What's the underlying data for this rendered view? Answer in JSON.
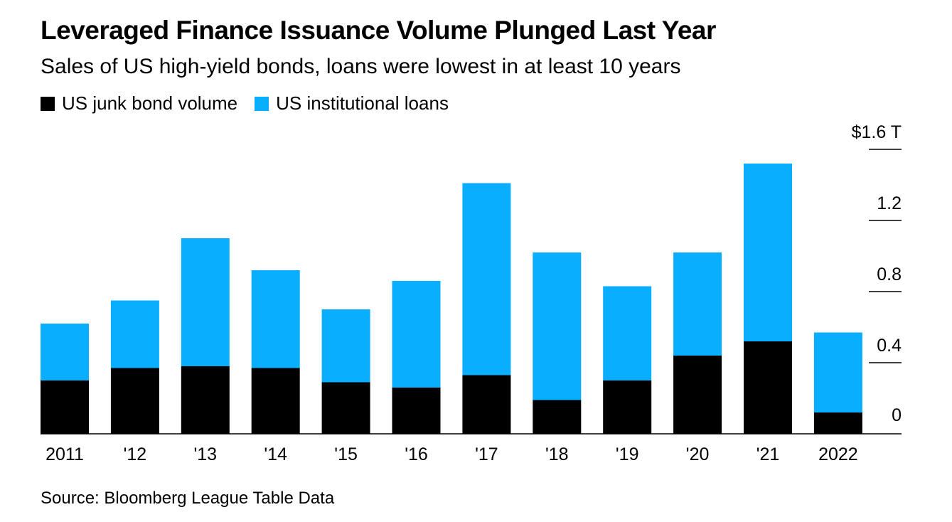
{
  "title": "Leveraged Finance Issuance Volume Plunged Last Year",
  "subtitle": "Sales of US high-yield bonds, loans were lowest in at least 10 years",
  "source": "Source: Bloomberg League Table Data",
  "colors": {
    "junk": "#000000",
    "loans": "#0aaeff"
  },
  "chart_data": {
    "type": "bar",
    "stacked": true,
    "categories": [
      "2011",
      "'12",
      "'13",
      "'14",
      "'15",
      "'16",
      "'17",
      "'18",
      "'19",
      "'20",
      "'21",
      "2022"
    ],
    "series": [
      {
        "name": "US junk bond volume",
        "values": [
          0.3,
          0.37,
          0.38,
          0.37,
          0.29,
          0.26,
          0.33,
          0.19,
          0.3,
          0.44,
          0.52,
          0.12
        ]
      },
      {
        "name": "US institutional loans",
        "values": [
          0.32,
          0.38,
          0.72,
          0.55,
          0.41,
          0.6,
          1.08,
          0.83,
          0.53,
          0.58,
          1.0,
          0.45
        ]
      }
    ],
    "y_ticks": [
      "$1.6 T",
      "1.2",
      "0.8",
      "0.4",
      "0"
    ],
    "y_tick_values": [
      1.6,
      1.2,
      0.8,
      0.4,
      0
    ],
    "ylim": [
      0,
      1.6
    ],
    "legend_position": "top-left",
    "y_axis_position": "right",
    "grid": false
  }
}
